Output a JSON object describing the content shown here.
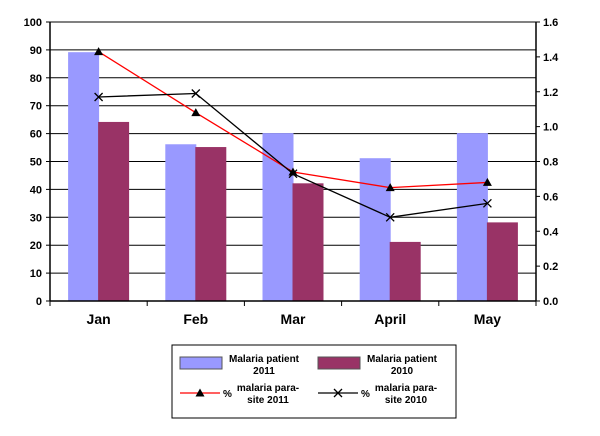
{
  "chart_data": {
    "type": "bar",
    "categories": [
      "Jan",
      "Feb",
      "Mar",
      "April",
      "May"
    ],
    "ylim": [
      0,
      100
    ],
    "y_ticks": [
      "0",
      "10",
      "20",
      "30",
      "40",
      "50",
      "60",
      "70",
      "80",
      "90",
      "100"
    ],
    "y2lim": [
      0,
      1.6
    ],
    "y2_ticks": [
      "0.0",
      "0.2",
      "0.4",
      "0.6",
      "0.8",
      "1.0",
      "1.2",
      "1.4",
      "1.6"
    ],
    "grid": true,
    "legend_position": "bottom",
    "series": [
      {
        "name_line1": "Malaria patient",
        "name_line2": "2011",
        "type": "bar",
        "axis": "left",
        "color": "#9999FF",
        "values": [
          89,
          56,
          60,
          51,
          60
        ]
      },
      {
        "name_line1": "Malaria patient",
        "name_line2": "2010",
        "type": "bar",
        "axis": "left",
        "color": "#993366",
        "values": [
          64,
          55,
          42,
          21,
          28
        ]
      },
      {
        "name_line1": "malaria para-",
        "name_line2": "site 2011",
        "name_prefix": "%",
        "type": "line",
        "axis": "right",
        "color": "#FF0000",
        "marker": "triangle",
        "values": [
          1.43,
          1.08,
          0.74,
          0.65,
          0.68
        ]
      },
      {
        "name_line1": "malaria para-",
        "name_line2": "site 2010",
        "name_prefix": "%",
        "type": "line",
        "axis": "right",
        "color": "#000000",
        "marker": "x",
        "values": [
          1.17,
          1.19,
          0.73,
          0.48,
          0.56
        ]
      }
    ]
  }
}
